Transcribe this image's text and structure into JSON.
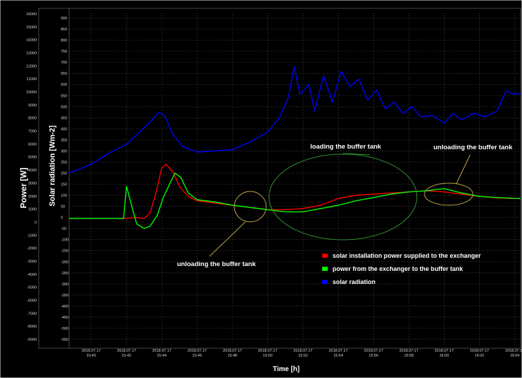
{
  "chart_data": {
    "type": "line",
    "title": "",
    "xlabel": "Time [h]",
    "ylabel_left": "Power [W]",
    "ylabel_right": "Solar radiation [Wm-2]",
    "x_tick_date": "2018.07.17",
    "x_ticks": [
      "15:40",
      "15:42",
      "15:44",
      "15:46",
      "15:48",
      "15:50",
      "15:52",
      "15:54",
      "15:56",
      "15:58",
      "16:00",
      "16:02",
      "16:04"
    ],
    "xlim": [
      "15:38:45",
      "16:04:20"
    ],
    "power_ticks": [
      16000,
      15000,
      14000,
      13000,
      12000,
      11000,
      10000,
      9000,
      8000,
      7000,
      6000,
      5000,
      4000,
      3000,
      2000,
      1000,
      0,
      -1000,
      -2000,
      -3000,
      -4000,
      -5000,
      -6000,
      -7000,
      -8000,
      -9000
    ],
    "radiation_ticks": [
      900,
      850,
      800,
      750,
      700,
      650,
      600,
      550,
      500,
      450,
      400,
      350,
      300,
      250,
      200,
      150,
      100,
      50,
      0,
      -50,
      -100,
      -150,
      -200,
      -250,
      -300,
      -350,
      -400,
      -450,
      -500,
      -550
    ],
    "radiation_ylim": [
      -575,
      925
    ],
    "grid": true,
    "series": [
      {
        "name": "solar installation power supplied to the exchanger",
        "color": "#ff0000",
        "unit": "Wm-2 axis",
        "points": [
          [
            "15:38:45",
            -5
          ],
          [
            "15:40",
            -5
          ],
          [
            "15:41",
            -5
          ],
          [
            "15:42",
            -5
          ],
          [
            "15:42:30",
            0
          ],
          [
            "15:43:00",
            -5
          ],
          [
            "15:43:20",
            20
          ],
          [
            "15:43:40",
            110
          ],
          [
            "15:44:00",
            225
          ],
          [
            "15:44:15",
            240
          ],
          [
            "15:44:40",
            200
          ],
          [
            "15:45:00",
            140
          ],
          [
            "15:45:30",
            95
          ],
          [
            "15:46:00",
            75
          ],
          [
            "15:47:00",
            65
          ],
          [
            "15:48:00",
            55
          ],
          [
            "15:49:00",
            45
          ],
          [
            "15:50:00",
            35
          ],
          [
            "15:51:00",
            35
          ],
          [
            "15:52:00",
            40
          ],
          [
            "15:53:00",
            55
          ],
          [
            "15:54:00",
            85
          ],
          [
            "15:55:00",
            100
          ],
          [
            "15:56:00",
            105
          ],
          [
            "15:57:00",
            110
          ],
          [
            "15:58:00",
            115
          ],
          [
            "15:59:00",
            120
          ],
          [
            "16:00:00",
            115
          ],
          [
            "16:01:00",
            105
          ],
          [
            "16:02:00",
            95
          ],
          [
            "16:03:00",
            88
          ],
          [
            "16:04:20",
            85
          ]
        ]
      },
      {
        "name": "power from the exchanger to the buffer tank",
        "color": "#00ff00",
        "unit": "Wm-2 axis",
        "points": [
          [
            "15:38:45",
            -5
          ],
          [
            "15:41:50",
            -5
          ],
          [
            "15:42:00",
            140
          ],
          [
            "15:42:20",
            40
          ],
          [
            "15:42:35",
            -30
          ],
          [
            "15:43:00",
            -50
          ],
          [
            "15:43:20",
            -40
          ],
          [
            "15:43:45",
            10
          ],
          [
            "15:44:05",
            90
          ],
          [
            "15:44:30",
            160
          ],
          [
            "15:44:45",
            200
          ],
          [
            "15:45:05",
            180
          ],
          [
            "15:45:30",
            110
          ],
          [
            "15:46:00",
            80
          ],
          [
            "15:47:00",
            70
          ],
          [
            "15:48:00",
            55
          ],
          [
            "15:49:00",
            45
          ],
          [
            "15:50:00",
            35
          ],
          [
            "15:51:00",
            25
          ],
          [
            "15:52:00",
            25
          ],
          [
            "15:53:00",
            40
          ],
          [
            "15:54:00",
            55
          ],
          [
            "15:55:00",
            75
          ],
          [
            "15:56:00",
            90
          ],
          [
            "15:57:00",
            105
          ],
          [
            "15:58:00",
            115
          ],
          [
            "15:59:00",
            120
          ],
          [
            "16:00:00",
            130
          ],
          [
            "16:01:00",
            110
          ],
          [
            "16:02:00",
            95
          ],
          [
            "16:03:00",
            90
          ],
          [
            "16:04:20",
            85
          ]
        ]
      },
      {
        "name": "solar radiation",
        "color": "#0000ff",
        "unit": "Wm-2 axis",
        "points": [
          [
            "15:38:45",
            200
          ],
          [
            "15:40:00",
            240
          ],
          [
            "15:41:00",
            290
          ],
          [
            "15:42:00",
            330
          ],
          [
            "15:42:40",
            380
          ],
          [
            "15:43:20",
            430
          ],
          [
            "15:43:50",
            475
          ],
          [
            "15:44:10",
            460
          ],
          [
            "15:44:35",
            380
          ],
          [
            "15:45:10",
            320
          ],
          [
            "15:46:00",
            295
          ],
          [
            "15:47:00",
            300
          ],
          [
            "15:48:00",
            305
          ],
          [
            "15:49:00",
            340
          ],
          [
            "15:50:00",
            385
          ],
          [
            "15:50:40",
            450
          ],
          [
            "15:51:10",
            540
          ],
          [
            "15:51:30",
            680
          ],
          [
            "15:51:50",
            555
          ],
          [
            "15:52:20",
            600
          ],
          [
            "15:52:40",
            480
          ],
          [
            "15:53:10",
            640
          ],
          [
            "15:53:40",
            520
          ],
          [
            "15:54:10",
            660
          ],
          [
            "15:54:40",
            590
          ],
          [
            "15:55:10",
            625
          ],
          [
            "15:55:40",
            530
          ],
          [
            "15:56:10",
            575
          ],
          [
            "15:56:40",
            490
          ],
          [
            "15:57:10",
            520
          ],
          [
            "15:57:40",
            470
          ],
          [
            "15:58:10",
            500
          ],
          [
            "15:58:40",
            455
          ],
          [
            "15:59:20",
            460
          ],
          [
            "16:00:00",
            425
          ],
          [
            "16:00:30",
            470
          ],
          [
            "16:01:00",
            440
          ],
          [
            "16:01:40",
            470
          ],
          [
            "16:02:20",
            455
          ],
          [
            "16:03:00",
            480
          ],
          [
            "16:03:30",
            570
          ],
          [
            "16:04:00",
            555
          ],
          [
            "16:04:20",
            560
          ]
        ]
      }
    ],
    "annotations": [
      {
        "text": "loading the buffer tank",
        "target_time": "15:54:00",
        "target_value": 50
      },
      {
        "text": "unloading the buffer tank",
        "target_time": "16:00:15",
        "target_value": 110
      },
      {
        "text": "unloading the buffer tank",
        "target_time": "15:48:45",
        "target_value": 50
      }
    ],
    "legend": "bottom-right"
  },
  "colors": {
    "background": "#000000",
    "grid": "#3c3c3c",
    "annotation_ellipse": "#bfa34a",
    "annotation_ellipse_green": "#2f8f2f"
  }
}
